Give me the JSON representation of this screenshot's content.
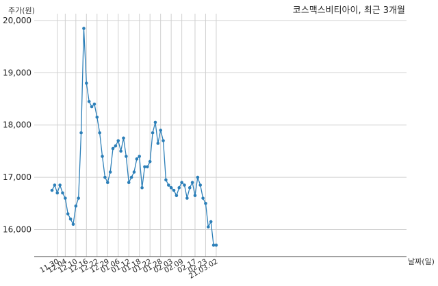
{
  "chart_data": {
    "type": "line",
    "title": "코스맥스비티아이, 최근 3개월",
    "ylabel": "주가(원)",
    "xlabel": "날짜(일)",
    "ylim": [
      15500,
      20000
    ],
    "yticks": [
      16000,
      17000,
      18000,
      19000,
      20000
    ],
    "ytick_labels": [
      "16,000",
      "17,000",
      "18,000",
      "19,000",
      "20,000"
    ],
    "xtick_labels": [
      "11.30",
      "12.04",
      "12.10",
      "12.16",
      "12.22",
      "12.29",
      "01.06",
      "01.12",
      "01.18",
      "01.22",
      "01.28",
      "02.03",
      "02.09",
      "02.17",
      "02.23",
      "21.03.02"
    ],
    "xtick_indices": [
      2,
      5,
      9,
      13,
      17,
      21,
      25,
      29,
      33,
      37,
      41,
      45,
      49,
      54,
      58,
      62
    ],
    "grid": true,
    "line_color": "#2c7fb8",
    "series": [
      {
        "values": [
          16750,
          16850,
          16700,
          16850,
          16700,
          16600,
          16300,
          16200,
          16100,
          16450,
          16600,
          17850,
          19850,
          18800,
          18450,
          18350,
          18400,
          18150,
          17850,
          17400,
          17000,
          16900,
          17100,
          17550,
          17600,
          17700,
          17500,
          17750,
          17400,
          16900,
          17000,
          17100,
          17350,
          17400,
          16800,
          17200,
          17200,
          17300,
          17850,
          18050,
          17650,
          17900,
          17700,
          16950,
          16850,
          16800,
          16750,
          16650,
          16800,
          16900,
          16850,
          16600,
          16800,
          16900,
          16650,
          17000,
          16850,
          16600,
          16500,
          16050,
          16150,
          15700,
          15700
        ]
      }
    ]
  }
}
